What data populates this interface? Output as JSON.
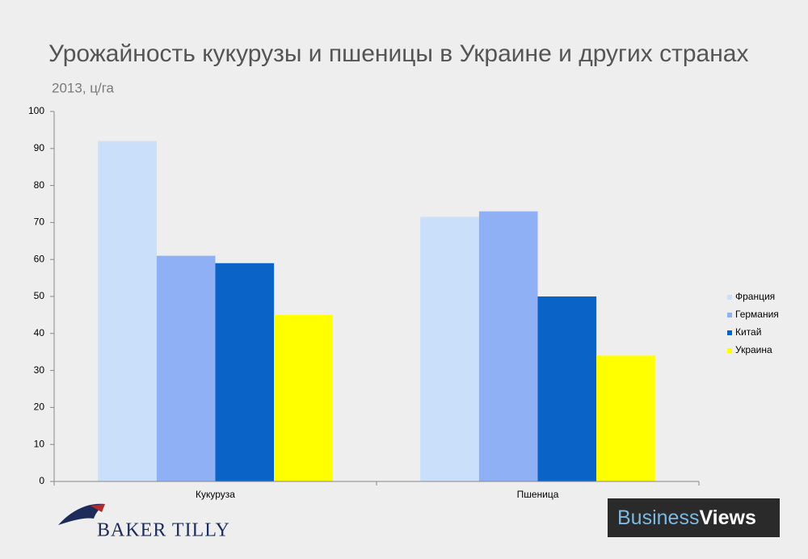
{
  "chart_data": {
    "type": "bar",
    "title": "Урожайность кукурузы и пшеницы в Украине и других странах",
    "subtitle": "2013, ц/га",
    "categories": [
      "Кукуруза",
      "Пшеница"
    ],
    "series": [
      {
        "name": "Франция",
        "color": "#c9dffa",
        "values": [
          92,
          71.5
        ]
      },
      {
        "name": "Германия",
        "color": "#8fb0f5",
        "values": [
          61,
          73
        ]
      },
      {
        "name": "Китай",
        "color": "#0a64c8",
        "values": [
          59,
          50
        ]
      },
      {
        "name": "Украина",
        "color": "#ffff00",
        "values": [
          45,
          34
        ]
      }
    ],
    "ylim": [
      0,
      100
    ],
    "yticks": [
      0,
      10,
      20,
      30,
      40,
      50,
      60,
      70,
      80,
      90,
      100
    ],
    "grid": false,
    "legend": "right"
  },
  "logos": {
    "left": "BAKER TILLY",
    "right_a": "Business",
    "right_b": "Views"
  }
}
